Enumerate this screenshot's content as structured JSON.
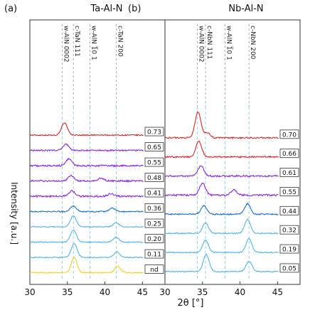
{
  "figure": {
    "xlabel": "2θ [°]",
    "ylabel": "Intensity [a.u.]"
  },
  "chart_data": [
    {
      "type": "line",
      "panel_label": "(a)",
      "title": "Ta-Al-N",
      "xlim": [
        30,
        48
      ],
      "x_ticks": [
        30,
        35,
        40,
        45
      ],
      "reference_lines": [
        {
          "label": "c-TaN 200",
          "x": 41.5
        },
        {
          "label": "w-AlN 1̅0 1",
          "x": 38.0
        },
        {
          "label": "c-TaN 111",
          "x": 35.8
        },
        {
          "label": "w-AlN 0002",
          "x": 34.3
        }
      ],
      "tags": [
        "0.73",
        "0.65",
        "0.55",
        "0.48",
        "0.41",
        "0.36",
        "0.25",
        "0.20",
        "0.11",
        "nd"
      ],
      "series": [
        {
          "tag": "0.73",
          "color": "#d62728",
          "peaks": [
            [
              34.6,
              0.9
            ]
          ],
          "noise": 0.08
        },
        {
          "tag": "0.65",
          "color": "#8a2be2",
          "peaks": [
            [
              34.8,
              0.45
            ]
          ],
          "noise": 0.1
        },
        {
          "tag": "0.55",
          "color": "#8a2be2",
          "peaks": [
            [
              35.2,
              0.5
            ]
          ],
          "noise": 0.12
        },
        {
          "tag": "0.48",
          "color": "#8a2be2",
          "peaks": [
            [
              35.5,
              0.4
            ],
            [
              39.5,
              0.2
            ]
          ],
          "noise": 0.12
        },
        {
          "tag": "0.41",
          "color": "#8a2be2",
          "peaks": [
            [
              35.6,
              0.4
            ],
            [
              40.8,
              0.2
            ]
          ],
          "noise": 0.12
        },
        {
          "tag": "0.36",
          "color": "#1f6fd1",
          "peaks": [
            [
              35.8,
              0.4
            ],
            [
              41.0,
              0.25
            ]
          ],
          "noise": 0.08
        },
        {
          "tag": "0.25",
          "color": "#56b4e9",
          "peaks": [
            [
              35.8,
              0.8
            ],
            [
              41.5,
              0.3
            ]
          ],
          "noise": 0.07
        },
        {
          "tag": "0.20",
          "color": "#56b4e9",
          "peaks": [
            [
              35.8,
              0.9
            ],
            [
              41.5,
              0.35
            ]
          ],
          "noise": 0.07
        },
        {
          "tag": "0.11",
          "color": "#56b4e9",
          "peaks": [
            [
              35.9,
              1.0
            ],
            [
              41.6,
              0.4
            ]
          ],
          "noise": 0.07
        },
        {
          "tag": "nd",
          "color": "#f2d026",
          "peaks": [
            [
              35.9,
              1.1
            ],
            [
              41.7,
              0.45
            ]
          ],
          "noise": 0.07
        }
      ]
    },
    {
      "type": "line",
      "panel_label": "(b)",
      "title": "Nb-Al-N",
      "xlim": [
        30,
        48
      ],
      "x_ticks": [
        30,
        35,
        40,
        45
      ],
      "reference_lines": [
        {
          "label": "c-NbN 200",
          "x": 41.2
        },
        {
          "label": "w-AlN 1̅0 1",
          "x": 38.0
        },
        {
          "label": "c-NbN 111",
          "x": 35.4
        },
        {
          "label": "w-AlN 0002",
          "x": 34.3
        }
      ],
      "tags": [
        "0.70",
        "0.66",
        "0.61",
        "0.55",
        "0.44",
        "0.32",
        "0.19",
        "0.05"
      ],
      "series": [
        {
          "tag": "0.70",
          "color": "#d62728",
          "peaks": [
            [
              34.4,
              1.5
            ],
            [
              35.6,
              0.3
            ]
          ],
          "noise": 0.08
        },
        {
          "tag": "0.66",
          "color": "#d62728",
          "peaks": [
            [
              34.5,
              0.9
            ]
          ],
          "noise": 0.08
        },
        {
          "tag": "0.61",
          "color": "#8a2be2",
          "peaks": [
            [
              34.8,
              0.6
            ]
          ],
          "noise": 0.1
        },
        {
          "tag": "0.55",
          "color": "#8a2be2",
          "peaks": [
            [
              35.0,
              0.7
            ],
            [
              39.2,
              0.3
            ]
          ],
          "noise": 0.1
        },
        {
          "tag": "0.44",
          "color": "#1f6fd1",
          "peaks": [
            [
              35.2,
              0.5
            ],
            [
              41.0,
              0.6
            ]
          ],
          "noise": 0.07
        },
        {
          "tag": "0.32",
          "color": "#56b4e9",
          "peaks": [
            [
              35.4,
              0.6
            ],
            [
              41.0,
              0.8
            ]
          ],
          "noise": 0.06
        },
        {
          "tag": "0.19",
          "color": "#56b4e9",
          "peaks": [
            [
              35.4,
              0.7
            ],
            [
              41.2,
              0.8
            ]
          ],
          "noise": 0.06
        },
        {
          "tag": "0.05",
          "color": "#56b4e9",
          "peaks": [
            [
              35.5,
              1.0
            ],
            [
              41.2,
              0.6
            ]
          ],
          "noise": 0.06
        }
      ]
    }
  ]
}
